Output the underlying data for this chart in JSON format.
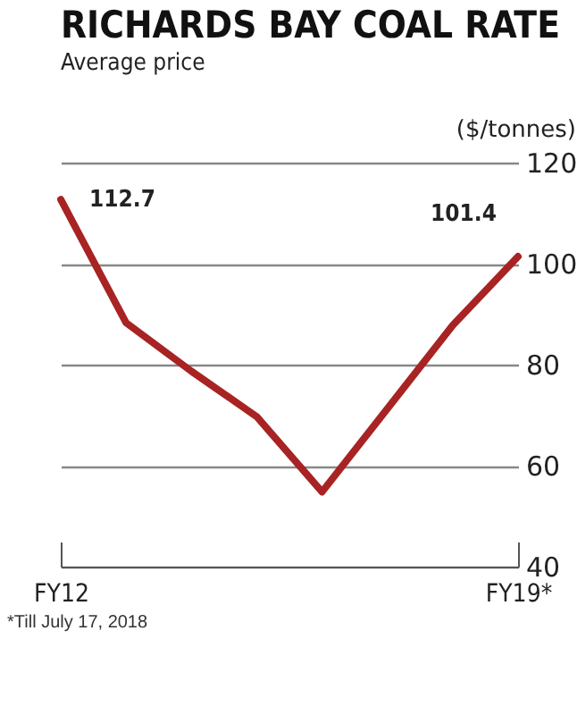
{
  "chart_data": {
    "type": "line",
    "title": "RICHARDS BAY COAL RATE",
    "subtitle": "Average price",
    "ylabel": "($/tonnes)",
    "categories": [
      "FY12",
      null,
      null,
      null,
      null,
      null,
      null,
      "FY19*"
    ],
    "series": [
      {
        "color": "#a82323",
        "values": [
          112.7,
          88.3,
          78.7,
          69.7,
          54.8,
          71.3,
          87.8,
          101.4
        ],
        "value_labels": [
          "112.7",
          null,
          null,
          null,
          null,
          null,
          null,
          "101.4"
        ]
      }
    ],
    "ylim": [
      40,
      120
    ],
    "yticks": [
      40,
      60,
      80,
      100,
      120
    ],
    "grid": "y",
    "line_style": "solid",
    "annotations": [
      "*Till July 17, 2018"
    ]
  }
}
